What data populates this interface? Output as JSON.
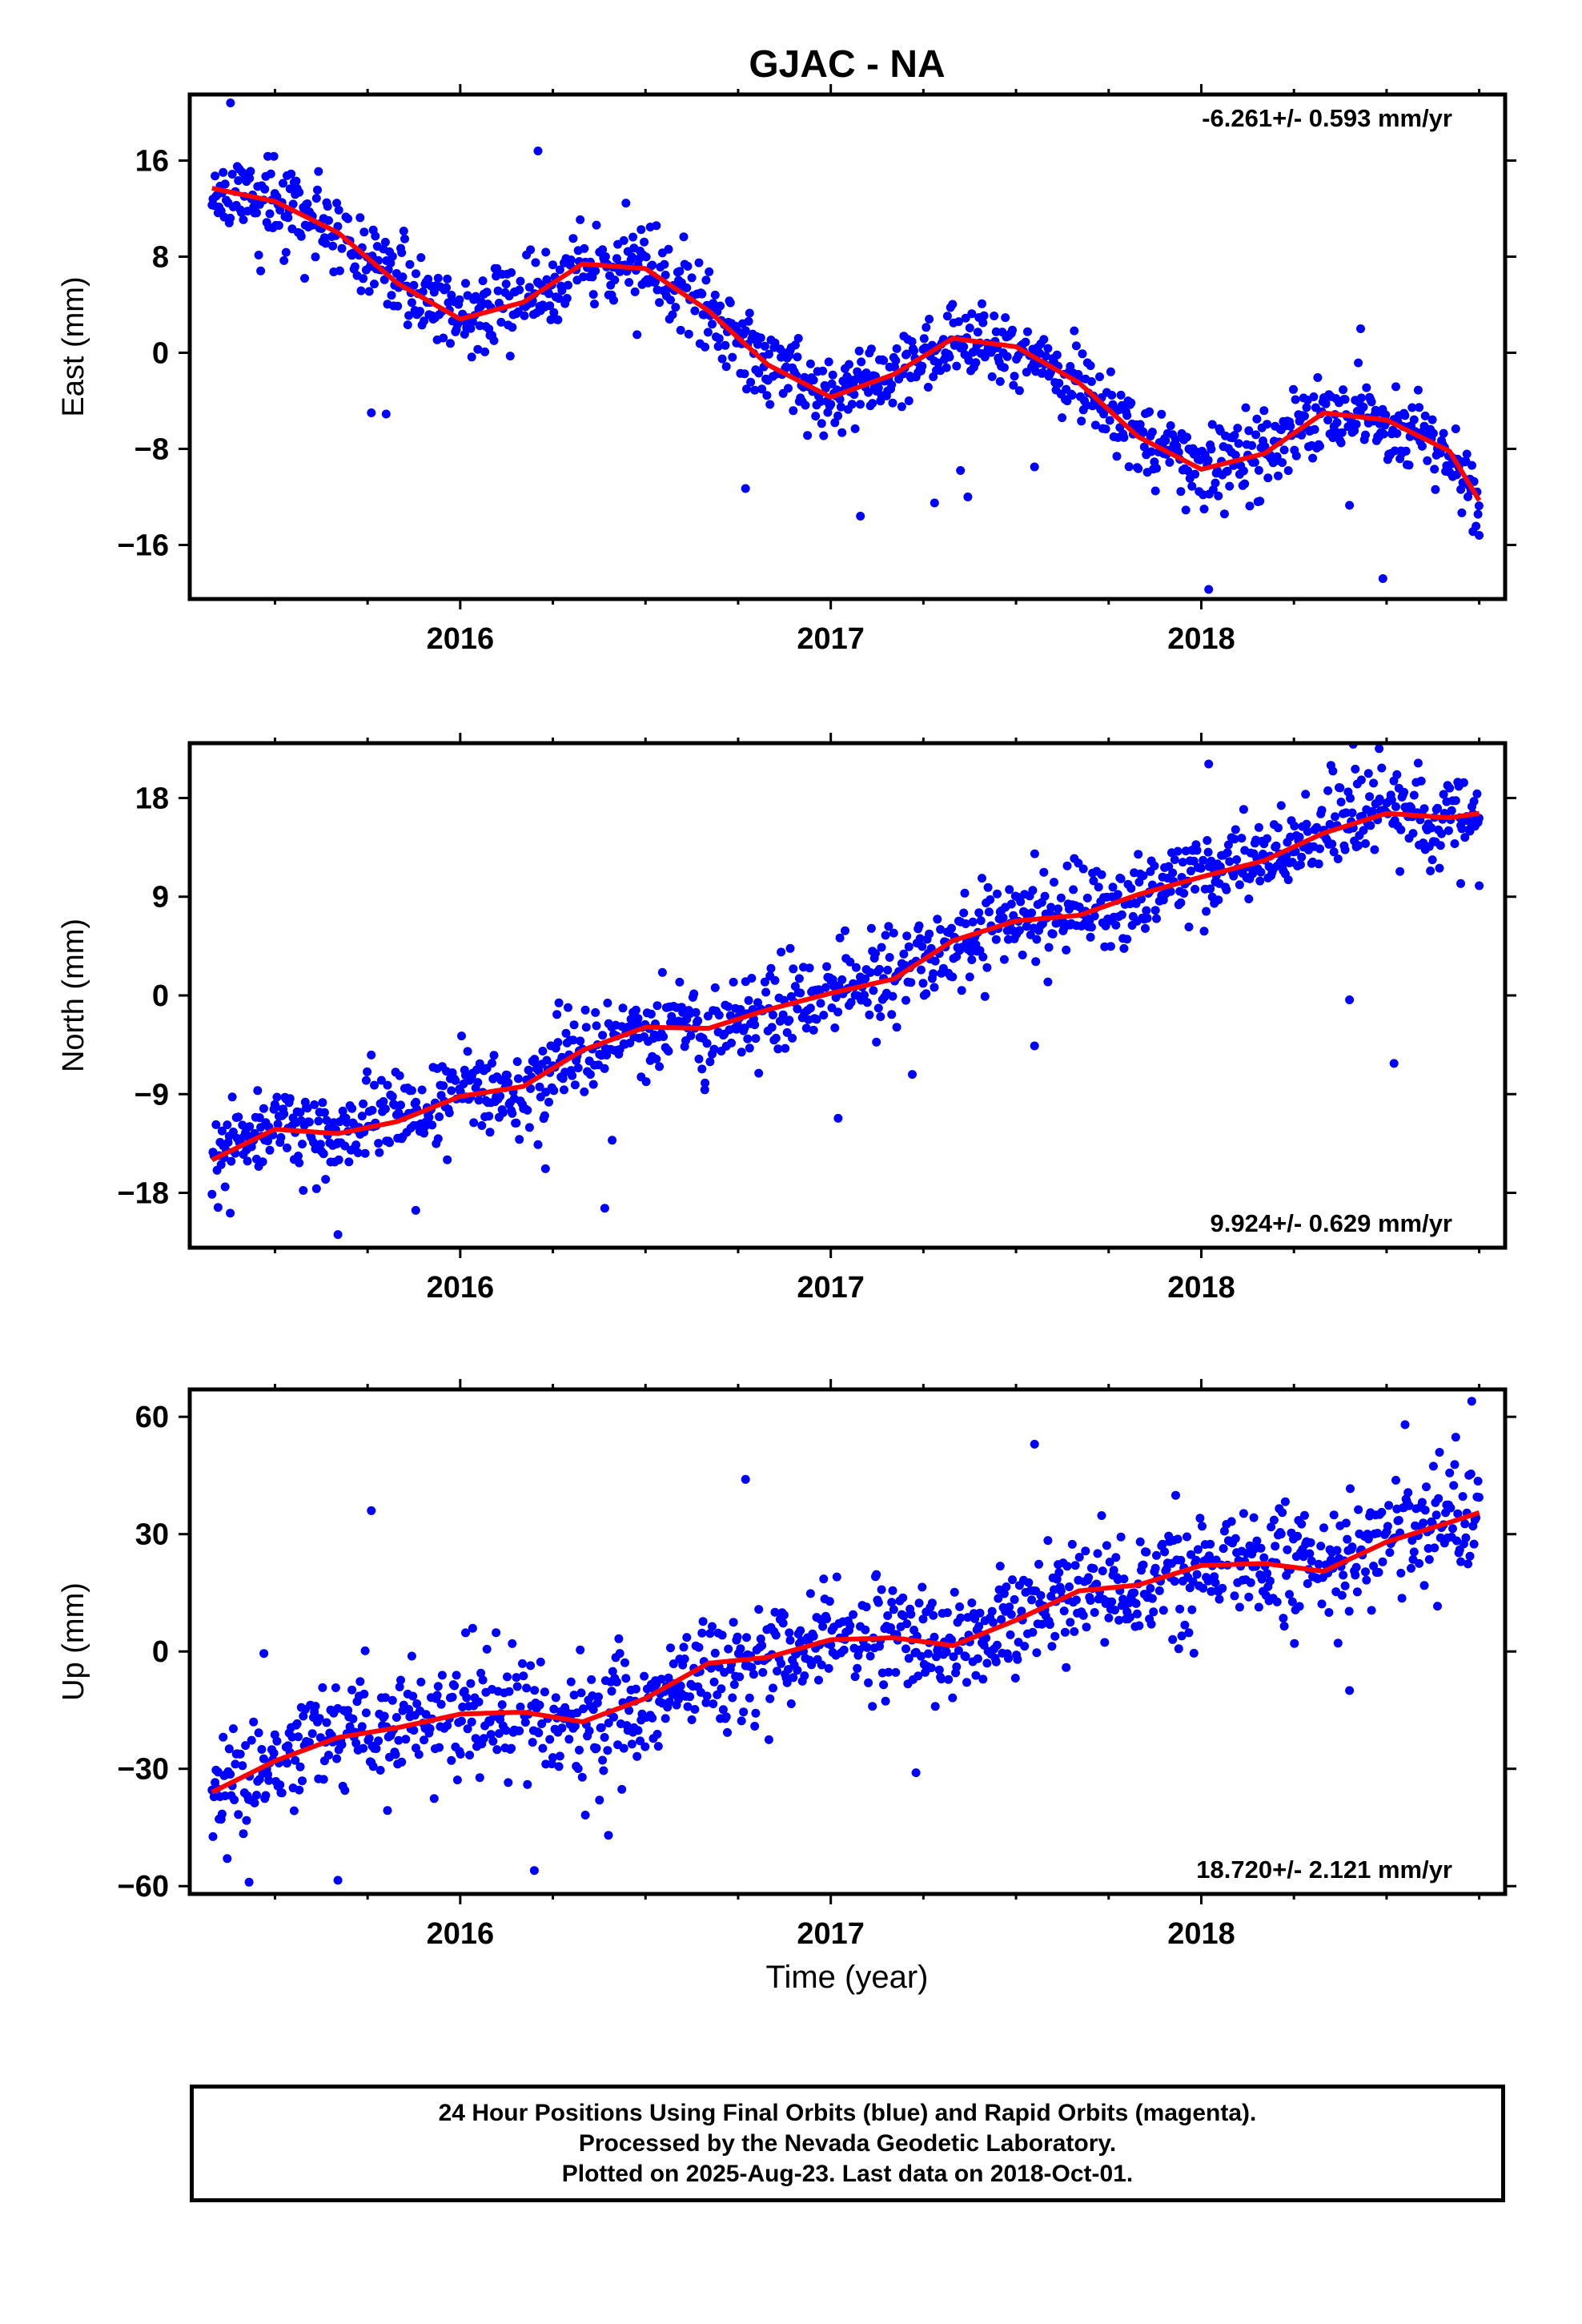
{
  "title": "GJAC - NA",
  "xlabel": "Time (year)",
  "colors": {
    "points": "#0000ff",
    "fit": "#ff0000",
    "axes": "#000000"
  },
  "chart_data": [
    {
      "type": "scatter",
      "ylabel": "East (mm)",
      "rate_text": "-6.261+/- 0.593 mm/yr",
      "rate_position": "top-right",
      "xlim": [
        2015.27,
        2018.82
      ],
      "ylim": [
        -20.5,
        21.5
      ],
      "xticks": [
        2016,
        2017,
        2018
      ],
      "yticks": [
        16,
        8,
        0,
        -8,
        -16
      ],
      "fit_curve": [
        [
          2015.33,
          13.7
        ],
        [
          2015.5,
          12.6
        ],
        [
          2015.67,
          10.0
        ],
        [
          2015.83,
          5.8
        ],
        [
          2016.0,
          2.8
        ],
        [
          2016.17,
          4.2
        ],
        [
          2016.33,
          7.4
        ],
        [
          2016.5,
          7.0
        ],
        [
          2016.67,
          3.5
        ],
        [
          2016.83,
          -1.0
        ],
        [
          2017.0,
          -3.7
        ],
        [
          2017.17,
          -1.8
        ],
        [
          2017.33,
          1.2
        ],
        [
          2017.5,
          0.5
        ],
        [
          2017.67,
          -2.5
        ],
        [
          2017.83,
          -7.0
        ],
        [
          2018.0,
          -9.7
        ],
        [
          2018.17,
          -8.4
        ],
        [
          2018.33,
          -5.0
        ],
        [
          2018.5,
          -5.6
        ],
        [
          2018.67,
          -8.2
        ],
        [
          2018.75,
          -12.3
        ]
      ],
      "scatter_seed": 11,
      "scatter_sigma": 1.6,
      "outliers": [
        [
          2015.38,
          20.8
        ],
        [
          2015.58,
          6.2
        ],
        [
          2015.76,
          -5.0
        ],
        [
          2015.8,
          -5.1
        ],
        [
          2016.21,
          16.8
        ],
        [
          2016.77,
          -11.3
        ],
        [
          2017.08,
          -13.6
        ],
        [
          2017.28,
          -12.5
        ],
        [
          2017.35,
          -9.8
        ],
        [
          2017.37,
          -12.0
        ],
        [
          2017.55,
          -9.5
        ],
        [
          2018.02,
          -19.7
        ],
        [
          2018.4,
          -12.7
        ],
        [
          2018.43,
          2.0
        ],
        [
          2018.49,
          -18.8
        ],
        [
          2018.75,
          -15.2
        ]
      ]
    },
    {
      "type": "scatter",
      "ylabel": "North (mm)",
      "rate_text": "9.924+/- 0.629 mm/yr",
      "rate_position": "bottom-right",
      "xlim": [
        2015.27,
        2018.82
      ],
      "ylim": [
        -23,
        23
      ],
      "xticks": [
        2016,
        2017,
        2018
      ],
      "yticks": [
        18,
        9,
        0,
        -9,
        -18
      ],
      "fit_curve": [
        [
          2015.33,
          -15.0
        ],
        [
          2015.5,
          -12.2
        ],
        [
          2015.67,
          -12.6
        ],
        [
          2015.83,
          -11.5
        ],
        [
          2016.0,
          -9.2
        ],
        [
          2016.17,
          -8.3
        ],
        [
          2016.33,
          -5.0
        ],
        [
          2016.5,
          -2.9
        ],
        [
          2016.67,
          -3.0
        ],
        [
          2016.83,
          -1.3
        ],
        [
          2017.0,
          0.2
        ],
        [
          2017.17,
          1.5
        ],
        [
          2017.33,
          5.0
        ],
        [
          2017.5,
          6.8
        ],
        [
          2017.67,
          7.3
        ],
        [
          2017.83,
          9.2
        ],
        [
          2018.0,
          10.8
        ],
        [
          2018.17,
          12.3
        ],
        [
          2018.33,
          14.8
        ],
        [
          2018.5,
          16.6
        ],
        [
          2018.67,
          16.2
        ],
        [
          2018.75,
          16.6
        ]
      ],
      "scatter_seed": 23,
      "scatter_sigma": 2.0,
      "outliers": [
        [
          2015.67,
          -21.8
        ],
        [
          2015.88,
          -19.6
        ],
        [
          2016.39,
          -19.4
        ],
        [
          2016.23,
          -15.8
        ],
        [
          2016.21,
          -13.6
        ],
        [
          2016.41,
          -13.2
        ],
        [
          2016.66,
          -8.6
        ],
        [
          2017.02,
          -11.2
        ],
        [
          2017.22,
          -7.2
        ],
        [
          2017.55,
          -4.6
        ],
        [
          2018.02,
          21.1
        ],
        [
          2018.4,
          -0.4
        ],
        [
          2018.52,
          -6.2
        ],
        [
          2018.41,
          22.9
        ],
        [
          2018.48,
          22.5
        ],
        [
          2018.7,
          10.2
        ],
        [
          2018.75,
          10.0
        ]
      ]
    },
    {
      "type": "scatter",
      "ylabel": "Up (mm)",
      "rate_text": "18.720+/- 2.121 mm/yr",
      "rate_position": "bottom-right",
      "xlim": [
        2015.27,
        2018.82
      ],
      "ylim": [
        -62,
        67
      ],
      "xticks": [
        2016,
        2017,
        2018
      ],
      "yticks": [
        60,
        30,
        0,
        -30,
        -60
      ],
      "fit_curve": [
        [
          2015.33,
          -36.0
        ],
        [
          2015.5,
          -28.0
        ],
        [
          2015.67,
          -22.0
        ],
        [
          2015.83,
          -19.5
        ],
        [
          2016.0,
          -16.0
        ],
        [
          2016.17,
          -15.5
        ],
        [
          2016.33,
          -18.0
        ],
        [
          2016.5,
          -12.0
        ],
        [
          2016.67,
          -3.0
        ],
        [
          2016.83,
          -1.5
        ],
        [
          2017.0,
          3.0
        ],
        [
          2017.17,
          3.5
        ],
        [
          2017.33,
          1.5
        ],
        [
          2017.5,
          8.0
        ],
        [
          2017.67,
          15.5
        ],
        [
          2017.83,
          17.0
        ],
        [
          2018.0,
          22.0
        ],
        [
          2018.17,
          22.5
        ],
        [
          2018.33,
          20.5
        ],
        [
          2018.5,
          28.0
        ],
        [
          2018.67,
          33.0
        ],
        [
          2018.75,
          35.5
        ]
      ],
      "scatter_seed": 37,
      "scatter_sigma": 7.5,
      "outliers": [
        [
          2015.43,
          -59.0
        ],
        [
          2015.67,
          -58.5
        ],
        [
          2016.2,
          -56.0
        ],
        [
          2016.4,
          -47.0
        ],
        [
          2015.76,
          36.0
        ],
        [
          2015.47,
          -0.5
        ],
        [
          2016.77,
          44.0
        ],
        [
          2017.23,
          -31.0
        ],
        [
          2017.55,
          53.0
        ],
        [
          2018.4,
          -10.0
        ],
        [
          2018.73,
          64.0
        ],
        [
          2018.55,
          58.0
        ]
      ]
    }
  ],
  "footer": {
    "line1": "24 Hour Positions Using Final Orbits (blue) and Rapid Orbits (magenta).",
    "line2": "Processed by the Nevada Geodetic Laboratory.",
    "line3": "Plotted on 2025-Aug-23. Last data on 2018-Oct-01."
  }
}
